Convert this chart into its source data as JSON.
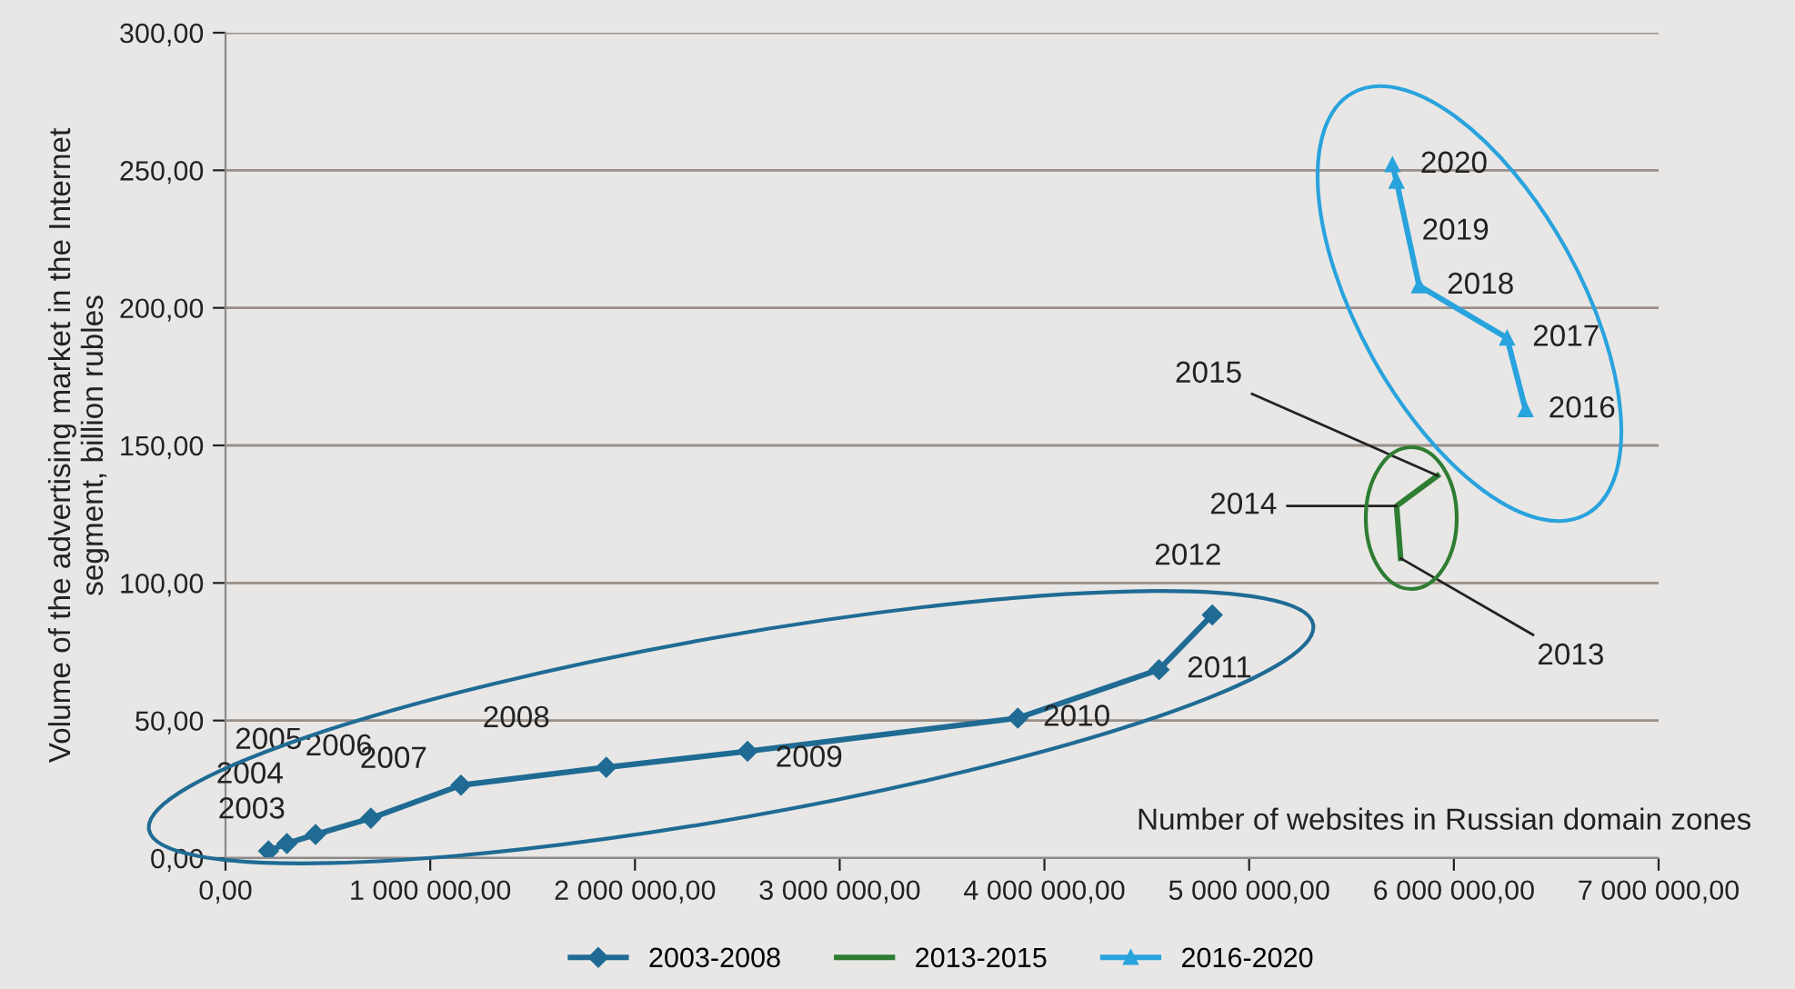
{
  "chart_data": {
    "type": "line",
    "xlabel": "Number of websites in Russian domain zones",
    "ylabel": "Volume of the advertising market in the Internet\nsegment, billion rubles",
    "xlim": [
      0,
      7000000
    ],
    "ylim": [
      0,
      300
    ],
    "xticks": [
      {
        "value": 0,
        "label": "0,00"
      },
      {
        "value": 1000000,
        "label": "1 000 000,00"
      },
      {
        "value": 2000000,
        "label": "2 000 000,00"
      },
      {
        "value": 3000000,
        "label": "3 000 000,00"
      },
      {
        "value": 4000000,
        "label": "4 000 000,00"
      },
      {
        "value": 5000000,
        "label": "5 000 000,00"
      },
      {
        "value": 6000000,
        "label": "6 000 000,00"
      },
      {
        "value": 7000000,
        "label": "7 000 000,00"
      }
    ],
    "yticks": [
      {
        "value": 0,
        "label": "0,00"
      },
      {
        "value": 50,
        "label": "50,00"
      },
      {
        "value": 100,
        "label": "100,00"
      },
      {
        "value": 150,
        "label": "150,00"
      },
      {
        "value": 200,
        "label": "200,00"
      },
      {
        "value": 250,
        "label": "250,00"
      },
      {
        "value": 300,
        "label": "300,00"
      }
    ],
    "grid": "y",
    "legend": "bottom",
    "series": [
      {
        "name": "2003-2008",
        "color": "#1f6b94",
        "marker": "diamond",
        "x": [
          210000,
          300000,
          440000,
          710000,
          1150000,
          1860000,
          2550000,
          3870000,
          4560000,
          4820000
        ],
        "values": [
          2.6,
          5.3,
          8.6,
          14.5,
          26.5,
          33,
          38.8,
          50.9,
          68.5,
          88.4
        ]
      },
      {
        "name": "2013-2015",
        "color": "#2e7d32",
        "marker": "none",
        "x": [
          5740000,
          5720000,
          5920000
        ],
        "values": [
          109,
          128,
          139
        ]
      },
      {
        "name": "2016-2020",
        "color": "#29a3dd",
        "marker": "triangle",
        "x": [
          6350000,
          6260000,
          5830000,
          5720000,
          5700000
        ],
        "values": [
          163,
          189,
          208,
          246,
          252
        ]
      }
    ],
    "annotations": [
      {
        "text": "2003",
        "x": 210000,
        "y": 2.6
      },
      {
        "text": "2004",
        "x": 300000,
        "y": 5.3
      },
      {
        "text": "2005",
        "x": 440000,
        "y": 8.6
      },
      {
        "text": "2006",
        "x": 710000,
        "y": 14.5
      },
      {
        "text": "2007",
        "x": 1150000,
        "y": 26.5
      },
      {
        "text": "2008",
        "x": 1860000,
        "y": 33
      },
      {
        "text": "2009",
        "x": 2550000,
        "y": 38.8
      },
      {
        "text": "2010",
        "x": 3870000,
        "y": 50.9
      },
      {
        "text": "2011",
        "x": 4560000,
        "y": 68.5
      },
      {
        "text": "2012",
        "x": 4820000,
        "y": 88.4
      },
      {
        "text": "2013",
        "x": 5740000,
        "y": 109
      },
      {
        "text": "2014",
        "x": 5720000,
        "y": 128
      },
      {
        "text": "2015",
        "x": 5920000,
        "y": 139
      },
      {
        "text": "2016",
        "x": 6350000,
        "y": 163
      },
      {
        "text": "2017",
        "x": 6260000,
        "y": 189
      },
      {
        "text": "2018",
        "x": 5830000,
        "y": 208
      },
      {
        "text": "2019",
        "x": 5720000,
        "y": 246
      },
      {
        "text": "2020",
        "x": 5700000,
        "y": 252
      }
    ]
  }
}
